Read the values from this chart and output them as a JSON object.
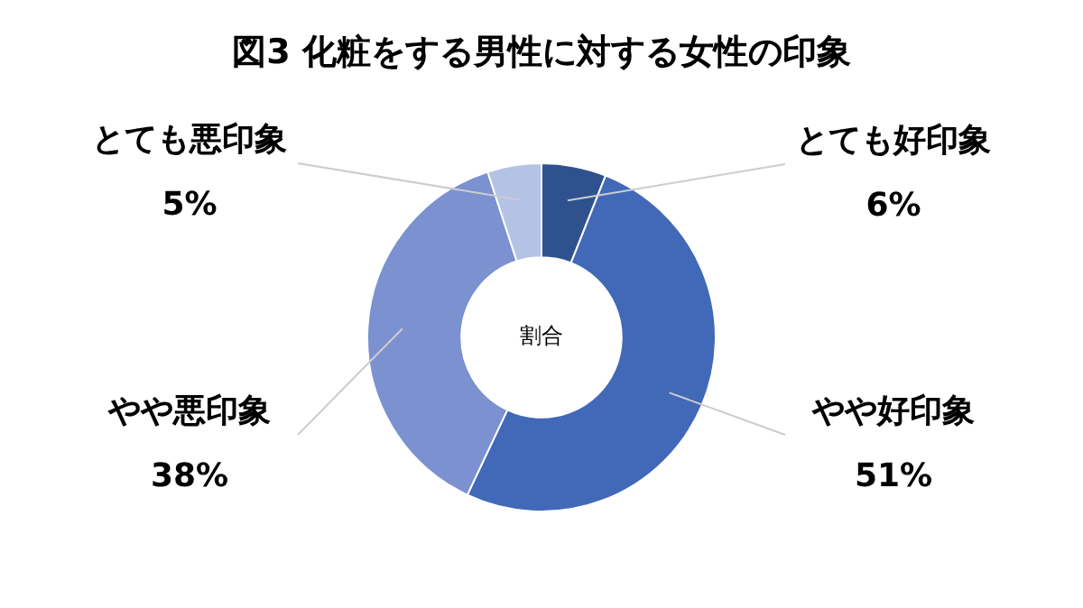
{
  "chart_data": {
    "type": "donut",
    "title": "図3 化粧をする男性に対する女性の印象",
    "categories": [
      "とても好印象",
      "やや好印象",
      "やや悪印象",
      "とても悪印象"
    ],
    "values": [
      6,
      51,
      38,
      5
    ],
    "colors": [
      "#2f528f",
      "#4169b8",
      "#7b91d0",
      "#b4c2e6"
    ],
    "value_labels": [
      "6%",
      "51%",
      "38%",
      "5%"
    ],
    "annotations": [
      "割合"
    ],
    "legend": false
  }
}
